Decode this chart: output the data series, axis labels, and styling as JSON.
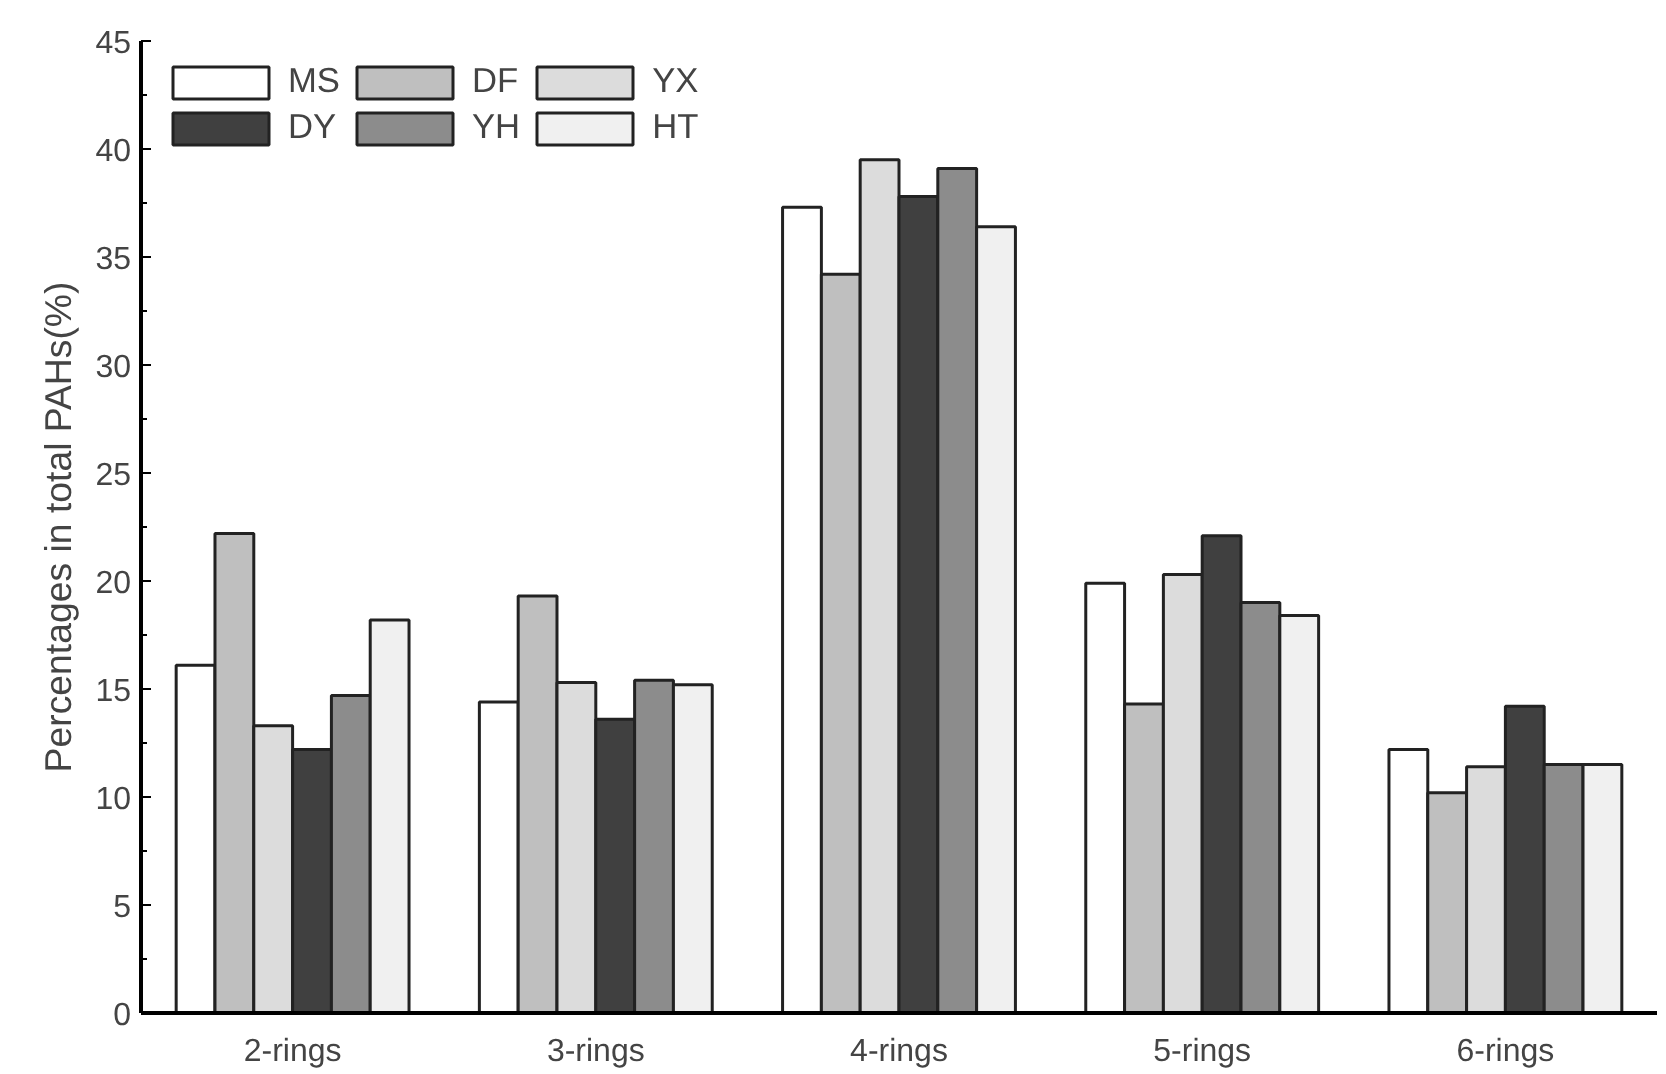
{
  "chart_data": {
    "type": "bar",
    "ylabel": "Percentages in total PAHs(%)",
    "categories": [
      "2-rings",
      "3-rings",
      "4-rings",
      "5-rings",
      "6-rings"
    ],
    "series": [
      {
        "name": "MS",
        "color": "#ffffff",
        "values": [
          16.1,
          14.4,
          37.3,
          19.9,
          12.2
        ]
      },
      {
        "name": "DF",
        "color": "#bfbfbf",
        "values": [
          22.2,
          19.3,
          34.2,
          14.3,
          10.2
        ]
      },
      {
        "name": "YX",
        "color": "#dcdcdc",
        "values": [
          13.3,
          15.3,
          39.5,
          20.3,
          11.4
        ]
      },
      {
        "name": "DY",
        "color": "#404040",
        "values": [
          12.2,
          13.6,
          37.8,
          22.1,
          14.2
        ]
      },
      {
        "name": "YH",
        "color": "#8c8c8c",
        "values": [
          14.7,
          15.4,
          39.1,
          19.0,
          11.5
        ]
      },
      {
        "name": "HT",
        "color": "#f0f0f0",
        "values": [
          18.2,
          15.2,
          36.4,
          18.4,
          11.5
        ]
      }
    ],
    "ylim": [
      0,
      45
    ],
    "yticks": [
      0,
      5,
      10,
      15,
      20,
      25,
      30,
      35,
      40,
      45
    ],
    "grid": false,
    "legend": "top left"
  }
}
